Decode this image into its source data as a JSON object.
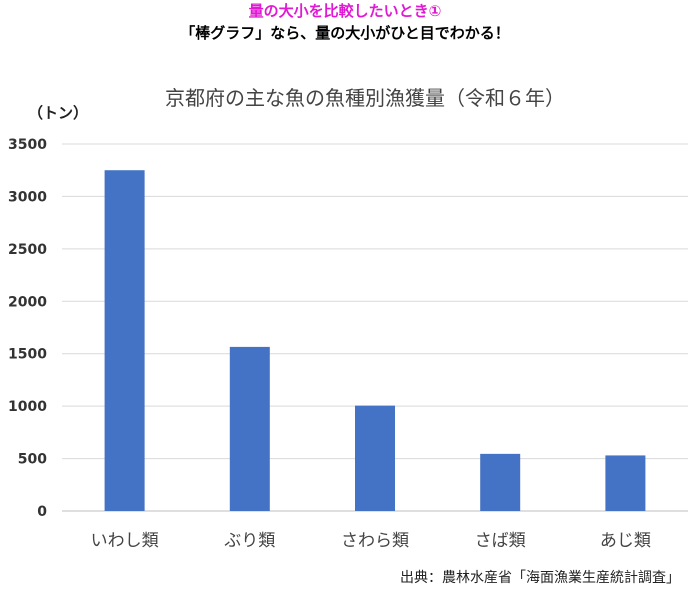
{
  "header": {
    "line1": "量の大小を比較したいとき①",
    "line2": "「棒グラフ」なら、量の大小がひと目でわかる！"
  },
  "chart_data": {
    "type": "bar",
    "title": "京都府の主な魚の魚種別漁獲量（令和６年）",
    "ylabel": "（トン）",
    "xlabel": "",
    "categories": [
      "いわし類",
      "ぶり類",
      "さわら類",
      "さば類",
      "あじ類"
    ],
    "values": [
      3250,
      1565,
      1005,
      545,
      530
    ],
    "ylim": [
      0,
      3500
    ],
    "yticks": [
      0,
      500,
      1000,
      1500,
      2000,
      2500,
      3000,
      3500
    ],
    "grid": true,
    "bar_color": "#4472c4"
  },
  "source": "出典：農林水産省「海面漁業生産統計調査」"
}
